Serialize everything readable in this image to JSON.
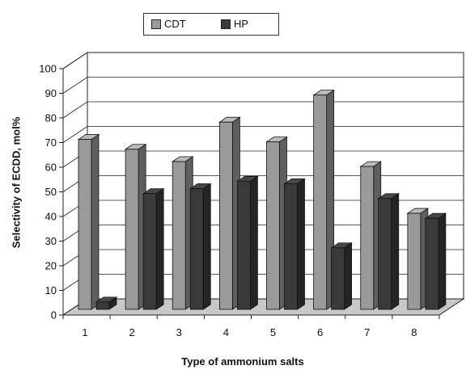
{
  "chart_data": {
    "type": "bar",
    "title": "",
    "xlabel": "Type of ammonium salts",
    "ylabel": "Selectivity of ECDD, mol%",
    "categories": [
      "1",
      "2",
      "3",
      "4",
      "5",
      "6",
      "7",
      "8"
    ],
    "series": [
      {
        "name": "CDT",
        "values": [
          69,
          65,
          60,
          76,
          68,
          87,
          58,
          39
        ],
        "color": "#9a9a9a"
      },
      {
        "name": "HP",
        "values": [
          3,
          47,
          49,
          52,
          51,
          25,
          45,
          37
        ],
        "color": "#3a3a3a"
      }
    ],
    "ylim": [
      0,
      100
    ],
    "yticks": [
      0,
      10,
      20,
      30,
      40,
      50,
      60,
      70,
      80,
      90,
      100
    ],
    "grid": true,
    "legend_position": "top-center",
    "floor_color": "#c8c8c8"
  }
}
